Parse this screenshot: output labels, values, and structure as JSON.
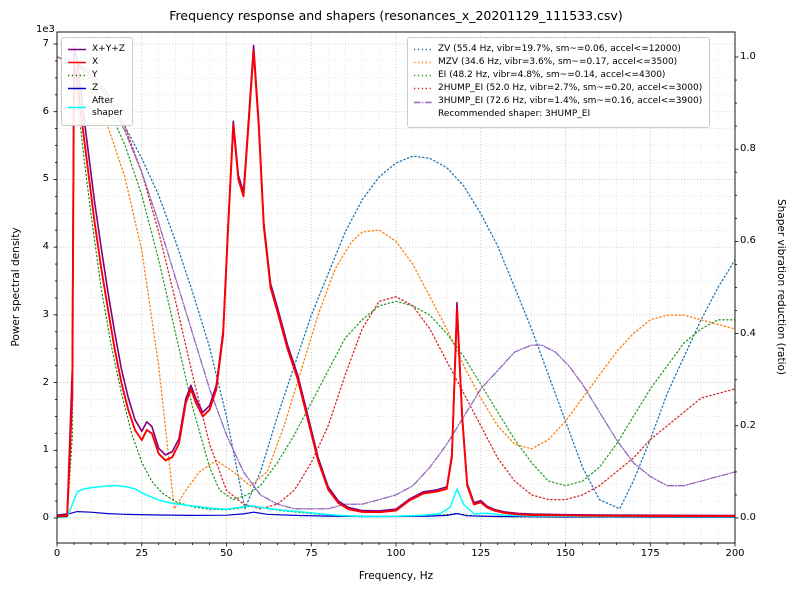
{
  "title": "Frequency response and shapers (resonances_x_20201129_111533.csv)",
  "axes": {
    "xlabel": "Frequency, Hz",
    "ylabel_left": "Power spectral density",
    "ylabel_right": "Shaper vibration reduction (ratio)",
    "offset_text": "1e3",
    "x_ticks": [
      0,
      25,
      50,
      75,
      100,
      125,
      150,
      175,
      200
    ],
    "y_ticks_left": [
      "0",
      "1",
      "2",
      "3",
      "4",
      "5",
      "6",
      "7"
    ],
    "y_ticks_right": [
      "0.0",
      "0.2",
      "0.4",
      "0.6",
      "0.8",
      "1.0"
    ]
  },
  "legends": {
    "psd": [
      {
        "label": "X+Y+Z",
        "color": "#800080",
        "style": "solid"
      },
      {
        "label": "X",
        "color": "#ff0000",
        "style": "solid"
      },
      {
        "label": "Y",
        "color": "#008000",
        "style": "dotted"
      },
      {
        "label": "Z",
        "color": "#0000cc",
        "style": "solid"
      },
      {
        "label": "After\nshaper",
        "color": "#00ffff",
        "style": "solid"
      }
    ],
    "shapers": {
      "items": [
        {
          "label": "ZV (55.4 Hz, vibr=19.7%, sm~=0.06, accel<=12000)",
          "color": "#1f77b4",
          "style": "dotted"
        },
        {
          "label": "MZV (34.6 Hz, vibr=3.6%, sm~=0.17, accel<=3500)",
          "color": "#ff7f0e",
          "style": "dotted"
        },
        {
          "label": "EI (48.2 Hz, vibr=4.8%, sm~=0.14, accel<=4300)",
          "color": "#2ca02c",
          "style": "dotted"
        },
        {
          "label": "2HUMP_EI (52.0 Hz, vibr=2.7%, sm~=0.20, accel<=3000)",
          "color": "#d62728",
          "style": "dotted"
        },
        {
          "label": "3HUMP_EI (72.6 Hz, vibr=1.4%, sm~=0.16, accel<=3900)",
          "color": "#9467bd",
          "style": "dashdot"
        }
      ],
      "note": "Recommended shaper: 3HUMP_EI"
    }
  },
  "chart_data": {
    "type": "line",
    "title": "Frequency response and shapers (resonances_x_20201129_111533.csv)",
    "xlabel": "Frequency, Hz",
    "ylabel_left": "Power spectral density (1e3)",
    "ylabel_right": "Shaper vibration reduction (ratio)",
    "xlim": [
      0,
      200
    ],
    "ylim_left": [
      0,
      7000
    ],
    "ylim_right": [
      0.0,
      1.0
    ],
    "grid": "major+minor",
    "recommended_shaper": "3HUMP_EI",
    "series": [
      {
        "name": "ZV",
        "axis": "right",
        "color": "#1f77b4",
        "style": "dotted",
        "width": 1.3,
        "x": [
          0,
          5,
          10,
          15,
          20,
          25,
          30,
          35,
          40,
          45,
          50,
          55.4,
          60,
          65,
          70,
          75,
          80,
          85,
          90,
          95,
          100,
          105,
          110,
          115,
          120,
          125,
          130,
          135,
          140,
          145,
          150,
          155,
          160,
          166,
          170,
          175,
          180,
          185,
          190,
          195,
          200
        ],
        "y": [
          1.0,
          0.99,
          0.96,
          0.91,
          0.85,
          0.78,
          0.7,
          0.6,
          0.49,
          0.37,
          0.22,
          0.02,
          0.1,
          0.22,
          0.33,
          0.44,
          0.53,
          0.62,
          0.69,
          0.74,
          0.77,
          0.785,
          0.78,
          0.76,
          0.72,
          0.66,
          0.59,
          0.5,
          0.41,
          0.31,
          0.21,
          0.11,
          0.04,
          0.02,
          0.08,
          0.17,
          0.27,
          0.35,
          0.43,
          0.5,
          0.56
        ]
      },
      {
        "name": "MZV",
        "axis": "right",
        "color": "#ff7f0e",
        "style": "dotted",
        "width": 1.3,
        "x": [
          0,
          5,
          10,
          15,
          20,
          25,
          30,
          34.6,
          38,
          42,
          47,
          52,
          57,
          62,
          67,
          72,
          77,
          82,
          87,
          90,
          95,
          100,
          105,
          110,
          115,
          120,
          125,
          130,
          135,
          140,
          145,
          150,
          155,
          160,
          165,
          170,
          175,
          180,
          185,
          190,
          195,
          200
        ],
        "y": [
          1.0,
          0.98,
          0.93,
          0.85,
          0.74,
          0.58,
          0.33,
          0.02,
          0.06,
          0.1,
          0.125,
          0.1,
          0.07,
          0.1,
          0.2,
          0.32,
          0.44,
          0.54,
          0.6,
          0.62,
          0.625,
          0.6,
          0.55,
          0.48,
          0.41,
          0.33,
          0.26,
          0.2,
          0.16,
          0.15,
          0.17,
          0.21,
          0.26,
          0.31,
          0.36,
          0.4,
          0.43,
          0.44,
          0.44,
          0.43,
          0.42,
          0.41
        ]
      },
      {
        "name": "EI",
        "axis": "right",
        "color": "#2ca02c",
        "style": "dotted",
        "width": 1.3,
        "x": [
          0,
          5,
          10,
          15,
          20,
          25,
          30,
          35,
          40,
          45,
          48,
          52,
          56,
          60,
          65,
          70,
          75,
          80,
          85,
          90,
          95,
          100,
          105,
          110,
          115,
          120,
          125,
          130,
          135,
          140,
          145,
          150,
          155,
          160,
          165,
          170,
          175,
          180,
          185,
          190,
          195,
          200
        ],
        "y": [
          1.0,
          0.99,
          0.95,
          0.89,
          0.81,
          0.7,
          0.56,
          0.4,
          0.24,
          0.11,
          0.06,
          0.04,
          0.05,
          0.07,
          0.12,
          0.18,
          0.25,
          0.32,
          0.39,
          0.43,
          0.46,
          0.47,
          0.46,
          0.44,
          0.4,
          0.35,
          0.29,
          0.23,
          0.17,
          0.12,
          0.08,
          0.07,
          0.08,
          0.11,
          0.16,
          0.22,
          0.28,
          0.33,
          0.38,
          0.41,
          0.43,
          0.43
        ]
      },
      {
        "name": "2HUMP_EI",
        "axis": "right",
        "color": "#d62728",
        "style": "dotted",
        "width": 1.3,
        "x": [
          0,
          5,
          10,
          15,
          20,
          25,
          30,
          35,
          40,
          45,
          50,
          55,
          60,
          65,
          70,
          75,
          80,
          85,
          90,
          95,
          100,
          105,
          110,
          115,
          120,
          125,
          130,
          135,
          140,
          145,
          150,
          155,
          160,
          165,
          170,
          175,
          180,
          185,
          190,
          195,
          200
        ],
        "y": [
          1.0,
          0.99,
          0.97,
          0.92,
          0.85,
          0.75,
          0.62,
          0.47,
          0.31,
          0.16,
          0.06,
          0.03,
          0.02,
          0.03,
          0.06,
          0.12,
          0.2,
          0.31,
          0.41,
          0.47,
          0.48,
          0.46,
          0.41,
          0.34,
          0.27,
          0.2,
          0.13,
          0.08,
          0.05,
          0.04,
          0.04,
          0.05,
          0.07,
          0.1,
          0.13,
          0.17,
          0.2,
          0.23,
          0.26,
          0.27,
          0.28
        ]
      },
      {
        "name": "3HUMP_EI",
        "axis": "right",
        "color": "#9467bd",
        "style": "dashdot",
        "width": 1.3,
        "x": [
          0,
          5,
          10,
          15,
          20,
          25,
          30,
          35,
          40,
          45,
          50,
          55,
          60,
          65,
          70,
          75,
          80,
          85,
          90,
          95,
          100,
          105,
          110,
          115,
          120,
          125,
          130,
          135,
          140,
          143,
          147,
          151,
          155,
          160,
          165,
          170,
          175,
          180,
          185,
          190,
          195,
          200
        ],
        "y": [
          1.0,
          0.99,
          0.96,
          0.91,
          0.84,
          0.75,
          0.64,
          0.52,
          0.4,
          0.28,
          0.18,
          0.1,
          0.05,
          0.03,
          0.02,
          0.02,
          0.02,
          0.03,
          0.03,
          0.04,
          0.05,
          0.07,
          0.11,
          0.16,
          0.22,
          0.28,
          0.32,
          0.36,
          0.375,
          0.375,
          0.36,
          0.33,
          0.29,
          0.23,
          0.17,
          0.12,
          0.09,
          0.07,
          0.07,
          0.08,
          0.09,
          0.1
        ]
      },
      {
        "name": "Y",
        "axis": "left",
        "color": "#008000",
        "style": "dotted",
        "width": 1.1,
        "x": [
          0,
          3,
          4.5,
          5,
          6,
          8,
          10,
          13,
          16,
          19,
          22,
          25,
          28,
          31,
          35,
          40,
          45,
          50,
          53,
          56,
          58,
          60,
          63,
          66,
          70,
          75,
          80,
          90,
          100,
          110,
          116,
          118,
          121,
          125,
          135,
          150,
          175,
          200
        ],
        "y": [
          15,
          25,
          1200,
          6500,
          6200,
          5300,
          4500,
          3400,
          2550,
          1850,
          1250,
          820,
          540,
          370,
          240,
          165,
          130,
          120,
          140,
          165,
          175,
          160,
          130,
          110,
          90,
          65,
          45,
          28,
          22,
          30,
          55,
          70,
          40,
          25,
          16,
          12,
          10,
          9
        ]
      },
      {
        "name": "Z",
        "axis": "left",
        "color": "#0000cc",
        "style": "solid",
        "width": 1.2,
        "x": [
          0,
          4,
          6,
          10,
          15,
          20,
          30,
          40,
          50,
          55,
          58,
          62,
          70,
          80,
          90,
          100,
          110,
          115,
          118,
          121,
          130,
          150,
          175,
          200
        ],
        "y": [
          10,
          70,
          95,
          85,
          65,
          55,
          45,
          38,
          42,
          60,
          85,
          55,
          38,
          28,
          22,
          22,
          28,
          38,
          65,
          32,
          22,
          16,
          13,
          11
        ]
      },
      {
        "name": "After shaper",
        "axis": "left",
        "color": "#00ffff",
        "style": "solid",
        "width": 1.5,
        "x": [
          0,
          3,
          4.5,
          6,
          8,
          11,
          14,
          17,
          20,
          23,
          26,
          30,
          34,
          38,
          42,
          46,
          50,
          54,
          57,
          60,
          64,
          68,
          72,
          76,
          80,
          85,
          90,
          100,
          108,
          113,
          116,
          118,
          120,
          123,
          127,
          132,
          140,
          150,
          160,
          180,
          200
        ],
        "y": [
          8,
          15,
          200,
          390,
          430,
          455,
          470,
          480,
          465,
          430,
          350,
          265,
          215,
          190,
          165,
          140,
          130,
          160,
          180,
          160,
          130,
          110,
          90,
          70,
          50,
          32,
          22,
          26,
          42,
          65,
          160,
          430,
          200,
          60,
          70,
          42,
          30,
          26,
          22,
          20,
          18
        ]
      },
      {
        "name": "X+Y+Z",
        "axis": "left",
        "color": "#800080",
        "style": "solid",
        "width": 1.6,
        "x": [
          0,
          3,
          4.5,
          5,
          6,
          7,
          9,
          11,
          13,
          15,
          17,
          19,
          21,
          23,
          25,
          26.5,
          28,
          30,
          32,
          34,
          36,
          38,
          39.5,
          41,
          43,
          45,
          47,
          49,
          50.5,
          52,
          53.5,
          55,
          56.5,
          58,
          59.5,
          61,
          63,
          65,
          68,
          71,
          74,
          77,
          80,
          83,
          86,
          90,
          95,
          100,
          104,
          108,
          112,
          115,
          116.5,
          118,
          119.5,
          121,
          123,
          125,
          127,
          129,
          132,
          136,
          140,
          150,
          160,
          180,
          200
        ],
        "y": [
          40,
          60,
          2200,
          6950,
          6750,
          6300,
          5500,
          4700,
          4000,
          3350,
          2750,
          2200,
          1780,
          1450,
          1280,
          1420,
          1350,
          1030,
          930,
          980,
          1170,
          1760,
          1960,
          1760,
          1560,
          1660,
          1960,
          2760,
          4360,
          5860,
          5060,
          4810,
          5870,
          6980,
          5870,
          4360,
          3460,
          3110,
          2560,
          2110,
          1510,
          900,
          460,
          250,
          155,
          110,
          105,
          130,
          280,
          385,
          415,
          460,
          940,
          3180,
          1540,
          510,
          225,
          255,
          170,
          125,
          90,
          68,
          57,
          48,
          43,
          40,
          37
        ]
      },
      {
        "name": "X",
        "axis": "left",
        "color": "#ff0000",
        "style": "solid",
        "width": 1.9,
        "x": [
          0,
          3,
          4.5,
          5,
          6,
          7,
          9,
          11,
          13,
          15,
          17,
          19,
          21,
          23,
          25,
          26.5,
          28,
          30,
          32,
          34,
          36,
          38,
          39.5,
          41,
          43,
          45,
          47,
          49,
          50.5,
          52,
          53.5,
          55,
          56.5,
          58,
          59.5,
          61,
          63,
          65,
          68,
          71,
          74,
          77,
          80,
          83,
          86,
          90,
          95,
          100,
          104,
          108,
          112,
          115,
          116.5,
          118,
          119.5,
          121,
          123,
          125,
          127,
          129,
          132,
          136,
          140,
          150,
          160,
          180,
          200
        ],
        "y": [
          20,
          30,
          1800,
          6700,
          6450,
          6000,
          5200,
          4400,
          3700,
          3100,
          2500,
          2000,
          1600,
          1300,
          1150,
          1300,
          1250,
          950,
          850,
          900,
          1100,
          1700,
          1900,
          1700,
          1500,
          1600,
          1900,
          2700,
          4300,
          5800,
          5000,
          4750,
          5800,
          6900,
          5800,
          4300,
          3400,
          3050,
          2500,
          2050,
          1450,
          850,
          420,
          220,
          130,
          90,
          85,
          110,
          260,
          360,
          390,
          430,
          900,
          3100,
          1500,
          480,
          200,
          230,
          150,
          110,
          75,
          55,
          45,
          38,
          33,
          30,
          28
        ]
      }
    ]
  }
}
